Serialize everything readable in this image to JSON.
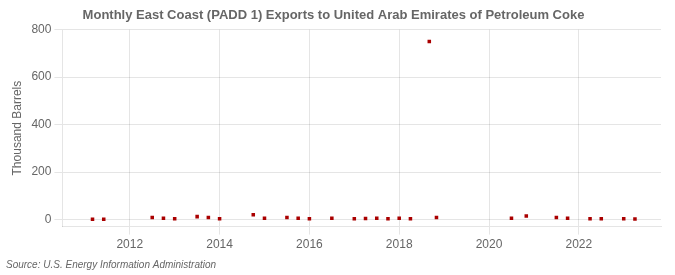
{
  "chart_data": {
    "type": "scatter",
    "title": "Monthly East Coast (PADD 1) Exports to United Arab Emirates of Petroleum Coke",
    "ylabel": "Thousand Barrels",
    "source": "Source: U.S. Energy Information Administration",
    "x": [
      2011.17,
      2011.42,
      2012.5,
      2012.75,
      2013.0,
      2013.5,
      2013.75,
      2014.0,
      2014.75,
      2015.0,
      2015.5,
      2015.75,
      2016.0,
      2016.5,
      2017.0,
      2017.25,
      2017.5,
      2017.75,
      2018.0,
      2018.25,
      2018.67,
      2018.83,
      2020.5,
      2020.83,
      2021.5,
      2021.75,
      2022.25,
      2022.5,
      2023.0,
      2023.25
    ],
    "values": [
      1,
      1,
      8,
      5,
      3,
      12,
      8,
      3,
      20,
      5,
      8,
      5,
      3,
      5,
      3,
      4,
      5,
      3,
      5,
      3,
      750,
      8,
      5,
      15,
      8,
      5,
      3,
      3,
      3,
      2
    ],
    "color": "#aa0000",
    "marker": "square",
    "xlim": [
      2010.5,
      2023.83
    ],
    "xticks": [
      2012,
      2014,
      2016,
      2018,
      2020,
      2022
    ],
    "ylim": [
      -30,
      800
    ],
    "yticks": [
      0,
      200,
      400,
      600,
      800
    ],
    "grid": true
  }
}
